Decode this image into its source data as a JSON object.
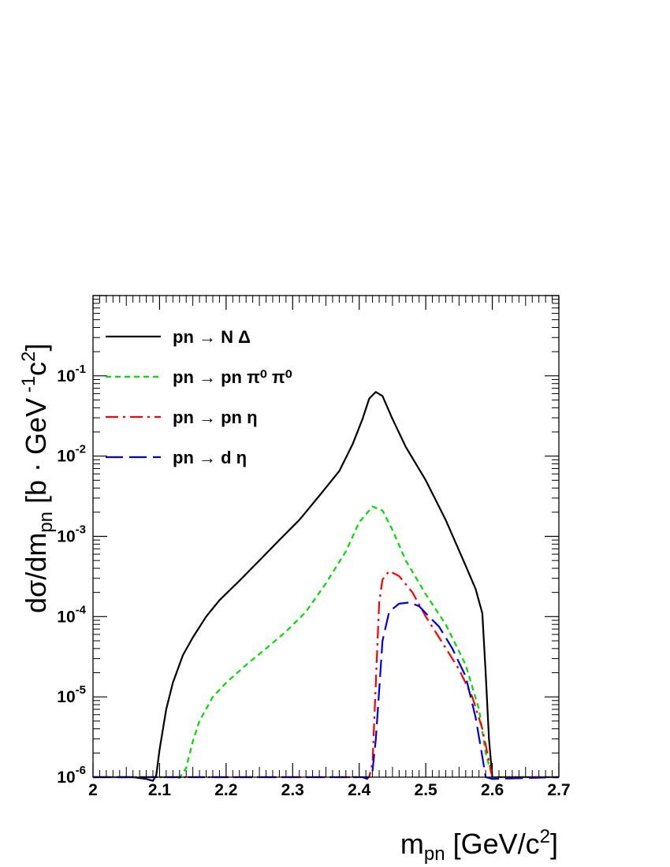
{
  "chart_data": {
    "type": "line",
    "title": "",
    "xlabel": "m_pn [GeV/c^2]",
    "ylabel": "dσ/dm_pn [b · GeV^-1 c^2]",
    "xlim": [
      2.0,
      2.7
    ],
    "ylim": [
      1e-06,
      1.0
    ],
    "yscale": "log",
    "grid": false,
    "legend_position": "top-left",
    "x_ticks": [
      "2",
      "2.1",
      "2.2",
      "2.3",
      "2.4",
      "2.5",
      "2.6",
      "2.7"
    ],
    "y_ticks": [
      {
        "base": "10",
        "exp": "-6"
      },
      {
        "base": "10",
        "exp": "-5"
      },
      {
        "base": "10",
        "exp": "-4"
      },
      {
        "base": "10",
        "exp": "-3"
      },
      {
        "base": "10",
        "exp": "-2"
      },
      {
        "base": "10",
        "exp": "-1"
      }
    ],
    "series": [
      {
        "name": "pn → N Δ",
        "color": "#000000",
        "dash": "solid",
        "points": [
          [
            2.0,
            1e-06
          ],
          [
            2.06,
            1e-06
          ],
          [
            2.08,
            9.5e-07
          ],
          [
            2.09,
            9e-07
          ],
          [
            2.095,
            1.05e-06
          ],
          [
            2.1,
            2.2e-06
          ],
          [
            2.11,
            7e-06
          ],
          [
            2.12,
            1.5e-05
          ],
          [
            2.135,
            3.3e-05
          ],
          [
            2.15,
            5.5e-05
          ],
          [
            2.17,
            0.0001
          ],
          [
            2.19,
            0.00016
          ],
          [
            2.22,
            0.00028
          ],
          [
            2.25,
            0.0005
          ],
          [
            2.28,
            0.0009
          ],
          [
            2.31,
            0.0016
          ],
          [
            2.34,
            0.0032
          ],
          [
            2.37,
            0.0065
          ],
          [
            2.39,
            0.014
          ],
          [
            2.405,
            0.029
          ],
          [
            2.415,
            0.052
          ],
          [
            2.425,
            0.063
          ],
          [
            2.435,
            0.056
          ],
          [
            2.45,
            0.029
          ],
          [
            2.47,
            0.013
          ],
          [
            2.5,
            0.005
          ],
          [
            2.53,
            0.0016
          ],
          [
            2.56,
            0.00043
          ],
          [
            2.575,
            0.00022
          ],
          [
            2.585,
            0.00011
          ],
          [
            2.59,
            2e-05
          ],
          [
            2.595,
            3e-06
          ],
          [
            2.6,
            1e-06
          ],
          [
            2.7,
            1e-06
          ]
        ]
      },
      {
        "name": "pn → pn π⁰ π⁰",
        "color": "#00dd00",
        "dash": "short-dash",
        "points": [
          [
            2.0,
            1e-06
          ],
          [
            2.12,
            1e-06
          ],
          [
            2.13,
            9.8e-07
          ],
          [
            2.14,
            1.3e-06
          ],
          [
            2.15,
            2.8e-06
          ],
          [
            2.16,
            5e-06
          ],
          [
            2.18,
            1e-05
          ],
          [
            2.2,
            1.5e-05
          ],
          [
            2.23,
            2.5e-05
          ],
          [
            2.26,
            4e-05
          ],
          [
            2.29,
            6.5e-05
          ],
          [
            2.32,
            0.000115
          ],
          [
            2.35,
            0.00026
          ],
          [
            2.38,
            0.00065
          ],
          [
            2.4,
            0.0015
          ],
          [
            2.42,
            0.00235
          ],
          [
            2.435,
            0.0021
          ],
          [
            2.45,
            0.0012
          ],
          [
            2.47,
            0.0005
          ],
          [
            2.5,
            0.00019
          ],
          [
            2.53,
            8e-05
          ],
          [
            2.56,
            2.5e-05
          ],
          [
            2.58,
            7e-06
          ],
          [
            2.59,
            2e-06
          ],
          [
            2.6,
            1e-06
          ],
          [
            2.7,
            1e-06
          ]
        ]
      },
      {
        "name": "pn → pn η",
        "color": "#ff0000",
        "dash": "dash-dot",
        "points": [
          [
            2.0,
            1e-06
          ],
          [
            2.415,
            1e-06
          ],
          [
            2.42,
            1.5e-06
          ],
          [
            2.425,
            1.5e-05
          ],
          [
            2.43,
            0.00015
          ],
          [
            2.435,
            0.00029
          ],
          [
            2.445,
            0.00037
          ],
          [
            2.46,
            0.00032
          ],
          [
            2.48,
            0.0002
          ],
          [
            2.5,
            0.0001
          ],
          [
            2.52,
            5.5e-05
          ],
          [
            2.55,
            2.2e-05
          ],
          [
            2.57,
            1e-05
          ],
          [
            2.585,
            4e-06
          ],
          [
            2.6,
            1e-06
          ],
          [
            2.7,
            1e-06
          ]
        ]
      },
      {
        "name": "pn → d η",
        "color": "#0000dd",
        "dash": "long-dash",
        "points": [
          [
            2.0,
            1e-06
          ],
          [
            2.405,
            1e-06
          ],
          [
            2.412,
            9.5e-07
          ],
          [
            2.42,
            1.2e-06
          ],
          [
            2.425,
            3e-06
          ],
          [
            2.43,
            1.2e-05
          ],
          [
            2.435,
            5e-05
          ],
          [
            2.445,
            0.000115
          ],
          [
            2.46,
            0.000145
          ],
          [
            2.475,
            0.00015
          ],
          [
            2.49,
            0.000135
          ],
          [
            2.505,
            0.0001
          ],
          [
            2.52,
            7.5e-05
          ],
          [
            2.54,
            4e-05
          ],
          [
            2.56,
            1.8e-05
          ],
          [
            2.575,
            5.5e-06
          ],
          [
            2.585,
            1.8e-06
          ],
          [
            2.59,
            1e-06
          ],
          [
            2.6,
            9.5e-07
          ],
          [
            2.7,
            1e-06
          ]
        ]
      }
    ]
  }
}
